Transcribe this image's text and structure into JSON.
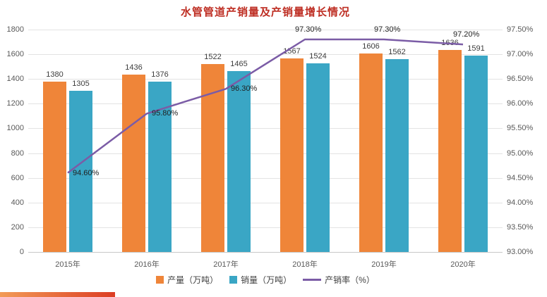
{
  "title": "水管管道产销量及产销量增长情况",
  "title_color": "#BE2E23",
  "decor": {
    "bottom_bar_colors": [
      "#F29B57",
      "#DC3D23"
    ]
  },
  "chart_data": {
    "type": "bar+line",
    "title": "水管管道产销量及产销量增长情况",
    "categories": [
      "2015年",
      "2016年",
      "2017年",
      "2018年",
      "2019年",
      "2020年"
    ],
    "series": [
      {
        "name": "产量（万吨）",
        "type": "bar",
        "color": "#EF8539",
        "values": [
          1380,
          1436,
          1522,
          1567,
          1606,
          1636
        ]
      },
      {
        "name": "销量（万吨）",
        "type": "bar",
        "color": "#3AA6C5",
        "values": [
          1305,
          1376,
          1465,
          1524,
          1562,
          1591
        ]
      },
      {
        "name": "产销率（%）",
        "type": "line",
        "color": "#7B5CA6",
        "values": [
          94.6,
          95.8,
          96.3,
          97.3,
          97.3,
          97.2
        ],
        "labels": [
          "94.60%",
          "95.80%",
          "96.30%",
          "97.30%",
          "97.30%",
          "97.20%"
        ]
      }
    ],
    "left_axis": {
      "min": 0,
      "max": 1800,
      "step": 200,
      "ticks": [
        "1800",
        "1600",
        "1400",
        "1200",
        "1000",
        "800",
        "600",
        "400",
        "200",
        "0"
      ]
    },
    "right_axis": {
      "min": 93.0,
      "max": 97.5,
      "step": 0.5,
      "ticks": [
        "97.50%",
        "97.00%",
        "96.50%",
        "96.00%",
        "95.50%",
        "95.00%",
        "94.50%",
        "94.00%",
        "93.50%",
        "93.00%"
      ]
    },
    "grid": true,
    "legend_position": "bottom"
  }
}
